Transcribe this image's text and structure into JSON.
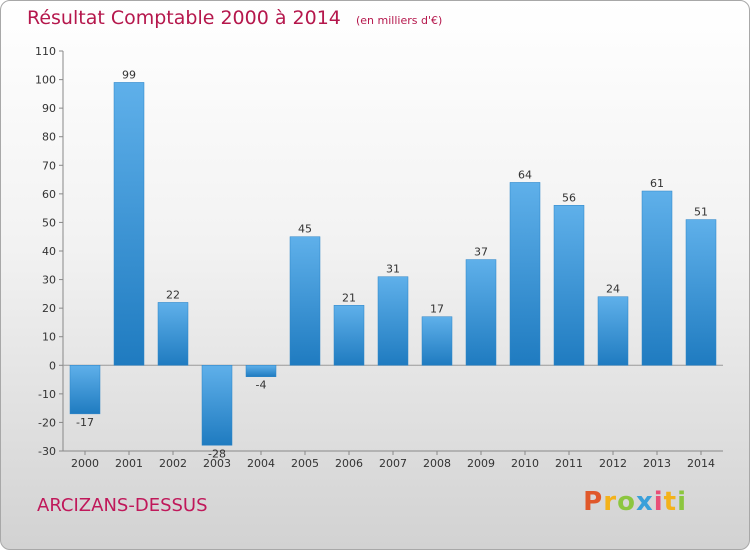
{
  "header": {
    "title": "Résultat Comptable 2000 à 2014",
    "unit": "(en milliers d'€)"
  },
  "footer": {
    "commune": "ARCIZANS-DESSUS",
    "brand": [
      "P",
      "r",
      "o",
      "x",
      "i",
      "t",
      "i"
    ]
  },
  "colors": {
    "title": "#b5174c",
    "bar_light": "#5fb0ea",
    "bar_dark": "#1f7bc0",
    "brand": [
      "#e0582a",
      "#f3b21a",
      "#8cc63f",
      "#3aa0da",
      "#e94e77",
      "#f3b21a",
      "#8cc63f"
    ]
  },
  "chart_data": {
    "type": "bar",
    "categories": [
      "2000",
      "2001",
      "2002",
      "2003",
      "2004",
      "2005",
      "2006",
      "2007",
      "2008",
      "2009",
      "2010",
      "2011",
      "2012",
      "2013",
      "2014"
    ],
    "values": [
      -17,
      99,
      22,
      -28,
      -4,
      45,
      21,
      31,
      17,
      37,
      64,
      56,
      24,
      61,
      51
    ],
    "data_labels": [
      "-17",
      "99",
      "22",
      "-28",
      "-4",
      "45",
      "21",
      "31",
      "17",
      "37",
      "64",
      "56",
      "24",
      "61",
      "51"
    ],
    "ylim": [
      -30,
      110
    ],
    "yticks": [
      -30,
      -20,
      -10,
      0,
      10,
      20,
      30,
      40,
      50,
      60,
      70,
      80,
      90,
      100,
      110
    ],
    "ytick_labels": [
      "-30",
      "-20",
      "-10",
      "0",
      "10",
      "20",
      "30",
      "40",
      "50",
      "60",
      "70",
      "80",
      "90",
      "100",
      "110"
    ],
    "grid": false,
    "legend": "none"
  }
}
